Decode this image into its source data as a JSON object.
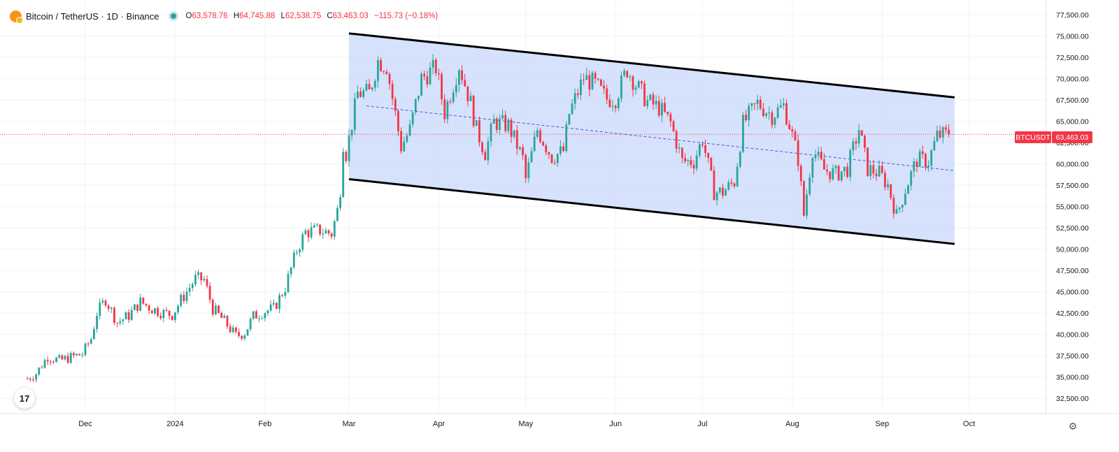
{
  "header": {
    "symbol": "Bitcoin / TetherUS · 1D · Binance",
    "ohlc": [
      {
        "key": "O",
        "value": "63,578.76"
      },
      {
        "key": "H",
        "value": "64,745.88"
      },
      {
        "key": "L",
        "value": "62,538.75"
      },
      {
        "key": "C",
        "value": "63,463.03"
      }
    ],
    "change": "−115.73 (−0.18%)"
  },
  "tv_logo": "17",
  "price_tag": {
    "label": "BTCUSDT",
    "value": "63,463.03"
  },
  "icons": {
    "settings": "gear-icon",
    "brand": "tradingview-logo",
    "symbol": "bitcoin-icon"
  },
  "colors": {
    "up": "#26a69a",
    "down": "#f23645",
    "channel_fill": "#cfdcfb",
    "grid": "#f0f3fa"
  },
  "chart_data": {
    "type": "candlestick",
    "title": "Bitcoin / TetherUS · 1D · Binance",
    "ylim": [
      30500,
      78500
    ],
    "yticks": [
      32500,
      35000,
      37500,
      40000,
      42500,
      45000,
      47500,
      50000,
      52500,
      55000,
      57500,
      60000,
      62500,
      65000,
      67500,
      70000,
      72500,
      75000,
      77500
    ],
    "ytick_labels": [
      "32,500.00",
      "35,000.00",
      "37,500.00",
      "40,000.00",
      "42,500.00",
      "45,000.00",
      "47,500.00",
      "50,000.00",
      "52,500.00",
      "55,000.00",
      "57,500.00",
      "60,000.00",
      "62,500.00",
      "65,000.00",
      "67,500.00",
      "70,000.00",
      "72,500.00",
      "75,000.00",
      "77,500.00"
    ],
    "xlabels": [
      "Dec",
      "2024",
      "Feb",
      "Mar",
      "Apr",
      "May",
      "Jun",
      "Jul",
      "Aug",
      "Sep",
      "Oct"
    ],
    "x_dates": [
      "2023-12-01",
      "2024-01-01",
      "2024-02-01",
      "2024-03-01",
      "2024-04-01",
      "2024-05-01",
      "2024-06-01",
      "2024-07-01",
      "2024-08-01",
      "2024-09-01",
      "2024-10-01"
    ],
    "current_price": 63463.03,
    "channel": {
      "upper": [
        [
          "2024-03-01",
          75300
        ],
        [
          "2024-09-26",
          67800
        ]
      ],
      "lower": [
        [
          "2024-03-01",
          58200
        ],
        [
          "2024-09-26",
          50600
        ]
      ],
      "mid": [
        [
          "2024-03-01",
          66800
        ],
        [
          "2024-09-26",
          59200
        ]
      ]
    },
    "daily_close": [
      [
        "2023-11-11",
        34800
      ],
      [
        "2023-11-14",
        35400
      ],
      [
        "2023-11-18",
        37400
      ],
      [
        "2023-11-22",
        36900
      ],
      [
        "2023-11-26",
        37300
      ],
      [
        "2023-11-30",
        37700
      ],
      [
        "2023-12-03",
        39500
      ],
      [
        "2023-12-05",
        42500
      ],
      [
        "2023-12-08",
        44100
      ],
      [
        "2023-12-12",
        41400
      ],
      [
        "2023-12-16",
        42200
      ],
      [
        "2023-12-20",
        43800
      ],
      [
        "2023-12-24",
        43000
      ],
      [
        "2023-12-28",
        42500
      ],
      [
        "2023-12-31",
        42300
      ],
      [
        "2024-01-03",
        44000
      ],
      [
        "2024-01-08",
        46500
      ],
      [
        "2024-01-11",
        46400
      ],
      [
        "2024-01-14",
        43000
      ],
      [
        "2024-01-18",
        41500
      ],
      [
        "2024-01-22",
        39800
      ],
      [
        "2024-01-25",
        40200
      ],
      [
        "2024-01-28",
        42100
      ],
      [
        "2024-01-31",
        42600
      ],
      [
        "2024-02-04",
        43000
      ],
      [
        "2024-02-08",
        45500
      ],
      [
        "2024-02-12",
        49900
      ],
      [
        "2024-02-15",
        52000
      ],
      [
        "2024-02-20",
        52200
      ],
      [
        "2024-02-24",
        51800
      ],
      [
        "2024-02-26",
        54500
      ],
      [
        "2024-02-27",
        57100
      ],
      [
        "2024-02-28",
        62500
      ],
      [
        "2024-02-29",
        61200
      ],
      [
        "2024-03-04",
        68300
      ],
      [
        "2024-03-08",
        68300
      ],
      [
        "2024-03-11",
        72100
      ],
      [
        "2024-03-14",
        71500
      ],
      [
        "2024-03-19",
        62000
      ],
      [
        "2024-03-22",
        64000
      ],
      [
        "2024-03-26",
        70000
      ],
      [
        "2024-03-31",
        71300
      ],
      [
        "2024-04-03",
        66000
      ],
      [
        "2024-04-08",
        71600
      ],
      [
        "2024-04-12",
        67100
      ],
      [
        "2024-04-14",
        64000
      ],
      [
        "2024-04-17",
        61300
      ],
      [
        "2024-04-20",
        64900
      ],
      [
        "2024-04-25",
        64500
      ],
      [
        "2024-04-30",
        60600
      ],
      [
        "2024-05-01",
        58200
      ],
      [
        "2024-05-05",
        64000
      ],
      [
        "2024-05-10",
        60800
      ],
      [
        "2024-05-14",
        61500
      ],
      [
        "2024-05-16",
        65900
      ],
      [
        "2024-05-21",
        70100
      ],
      [
        "2024-05-25",
        69300
      ],
      [
        "2024-05-29",
        67600
      ],
      [
        "2024-06-01",
        67700
      ],
      [
        "2024-06-05",
        71100
      ],
      [
        "2024-06-08",
        69300
      ],
      [
        "2024-06-12",
        67300
      ],
      [
        "2024-06-16",
        66600
      ],
      [
        "2024-06-20",
        64800
      ],
      [
        "2024-06-24",
        60300
      ],
      [
        "2024-06-28",
        60300
      ],
      [
        "2024-07-01",
        62900
      ],
      [
        "2024-07-05",
        56700
      ],
      [
        "2024-07-08",
        56700
      ],
      [
        "2024-07-12",
        57900
      ],
      [
        "2024-07-15",
        64700
      ],
      [
        "2024-07-20",
        67100
      ],
      [
        "2024-07-25",
        65700
      ],
      [
        "2024-07-29",
        66800
      ],
      [
        "2024-07-31",
        64600
      ],
      [
        "2024-08-03",
        60600
      ],
      [
        "2024-08-05",
        54000
      ],
      [
        "2024-08-08",
        61700
      ],
      [
        "2024-08-12",
        59300
      ],
      [
        "2024-08-16",
        58800
      ],
      [
        "2024-08-20",
        59400
      ],
      [
        "2024-08-24",
        64100
      ],
      [
        "2024-08-27",
        59400
      ],
      [
        "2024-08-31",
        58900
      ],
      [
        "2024-09-03",
        57500
      ],
      [
        "2024-09-06",
        53900
      ],
      [
        "2024-09-09",
        57000
      ],
      [
        "2024-09-13",
        60500
      ],
      [
        "2024-09-17",
        60300
      ],
      [
        "2024-09-20",
        63300
      ],
      [
        "2024-09-24",
        63463
      ]
    ]
  }
}
